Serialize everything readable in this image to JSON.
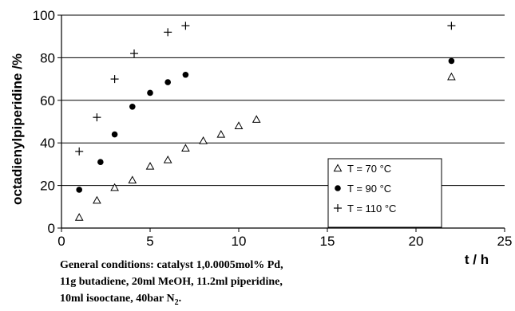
{
  "chart_data": {
    "type": "scatter",
    "xlabel": "t / h",
    "ylabel": "octadienylpiperidine /%",
    "xlim": [
      0,
      25
    ],
    "ylim": [
      0,
      100
    ],
    "x_ticks": [
      "0",
      "5",
      "10",
      "15",
      "20",
      "25"
    ],
    "y_ticks": [
      "0",
      "20",
      "40",
      "60",
      "80",
      "100"
    ],
    "grid": "horizontal",
    "legend_position": "bottom-right",
    "series": [
      {
        "name": "T = 70 °C",
        "marker": "triangle",
        "points": [
          [
            1,
            5
          ],
          [
            2,
            13
          ],
          [
            3,
            19
          ],
          [
            4,
            22.5
          ],
          [
            5,
            29
          ],
          [
            6,
            32
          ],
          [
            7,
            37.5
          ],
          [
            8,
            41
          ],
          [
            9,
            44
          ],
          [
            10,
            48
          ],
          [
            11,
            51
          ],
          [
            22,
            71
          ]
        ]
      },
      {
        "name": "T = 90 °C",
        "marker": "circle",
        "points": [
          [
            1,
            18
          ],
          [
            2.2,
            31
          ],
          [
            3,
            44
          ],
          [
            4,
            57
          ],
          [
            5,
            63.5
          ],
          [
            6,
            68.5
          ],
          [
            7,
            72
          ],
          [
            22,
            78.5
          ]
        ]
      },
      {
        "name": "T = 110 °C",
        "marker": "plus",
        "points": [
          [
            1,
            36
          ],
          [
            2,
            52
          ],
          [
            3,
            70
          ],
          [
            4.1,
            82
          ],
          [
            6,
            92
          ],
          [
            7,
            95
          ],
          [
            22,
            95
          ]
        ]
      }
    ]
  },
  "caption": {
    "lines": [
      "General conditions: catalyst 1,0.0005mol% Pd,",
      "11g butadiene, 20ml MeOH, 11.2ml piperidine,",
      "10ml isooctane, 40bar N"
    ],
    "subscript": "2",
    "suffix": "."
  }
}
